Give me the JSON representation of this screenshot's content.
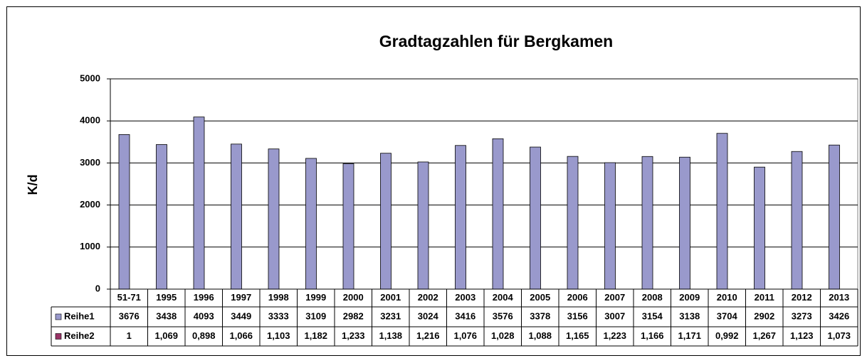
{
  "chart_data": {
    "type": "bar",
    "title": "Gradtagzahlen für Bergkamen",
    "y_label": "K/d",
    "categories": [
      "51-71",
      "1995",
      "1996",
      "1997",
      "1998",
      "1999",
      "2000",
      "2001",
      "2002",
      "2003",
      "2004",
      "2005",
      "2006",
      "2007",
      "2008",
      "2009",
      "2010",
      "2011",
      "2012",
      "2013"
    ],
    "series": [
      {
        "name": "Reihe1",
        "color": "#9999cc",
        "values": [
          3676,
          3438,
          4093,
          3449,
          3333,
          3109,
          2982,
          3231,
          3024,
          3416,
          3576,
          3378,
          3156,
          3007,
          3154,
          3138,
          3704,
          2902,
          3273,
          3426
        ]
      },
      {
        "name": "Reihe2",
        "color": "#993366",
        "values": [
          1,
          1.069,
          0.898,
          1.066,
          1.103,
          1.182,
          1.233,
          1.138,
          1.216,
          1.076,
          1.028,
          1.088,
          1.165,
          1.223,
          1.166,
          1.171,
          0.992,
          1.267,
          1.123,
          1.073
        ],
        "value_labels": [
          "1",
          "1,069",
          "0,898",
          "1,066",
          "1,103",
          "1,182",
          "1,233",
          "1,138",
          "1,216",
          "1,076",
          "1,028",
          "1,088",
          "1,165",
          "1,223",
          "1,166",
          "1,171",
          "0,992",
          "1,267",
          "1,123",
          "1,073"
        ]
      }
    ],
    "ylim": [
      0,
      5000
    ],
    "yticks": [
      0,
      1000,
      2000,
      3000,
      4000,
      5000
    ],
    "grid": true,
    "data_table": true
  }
}
